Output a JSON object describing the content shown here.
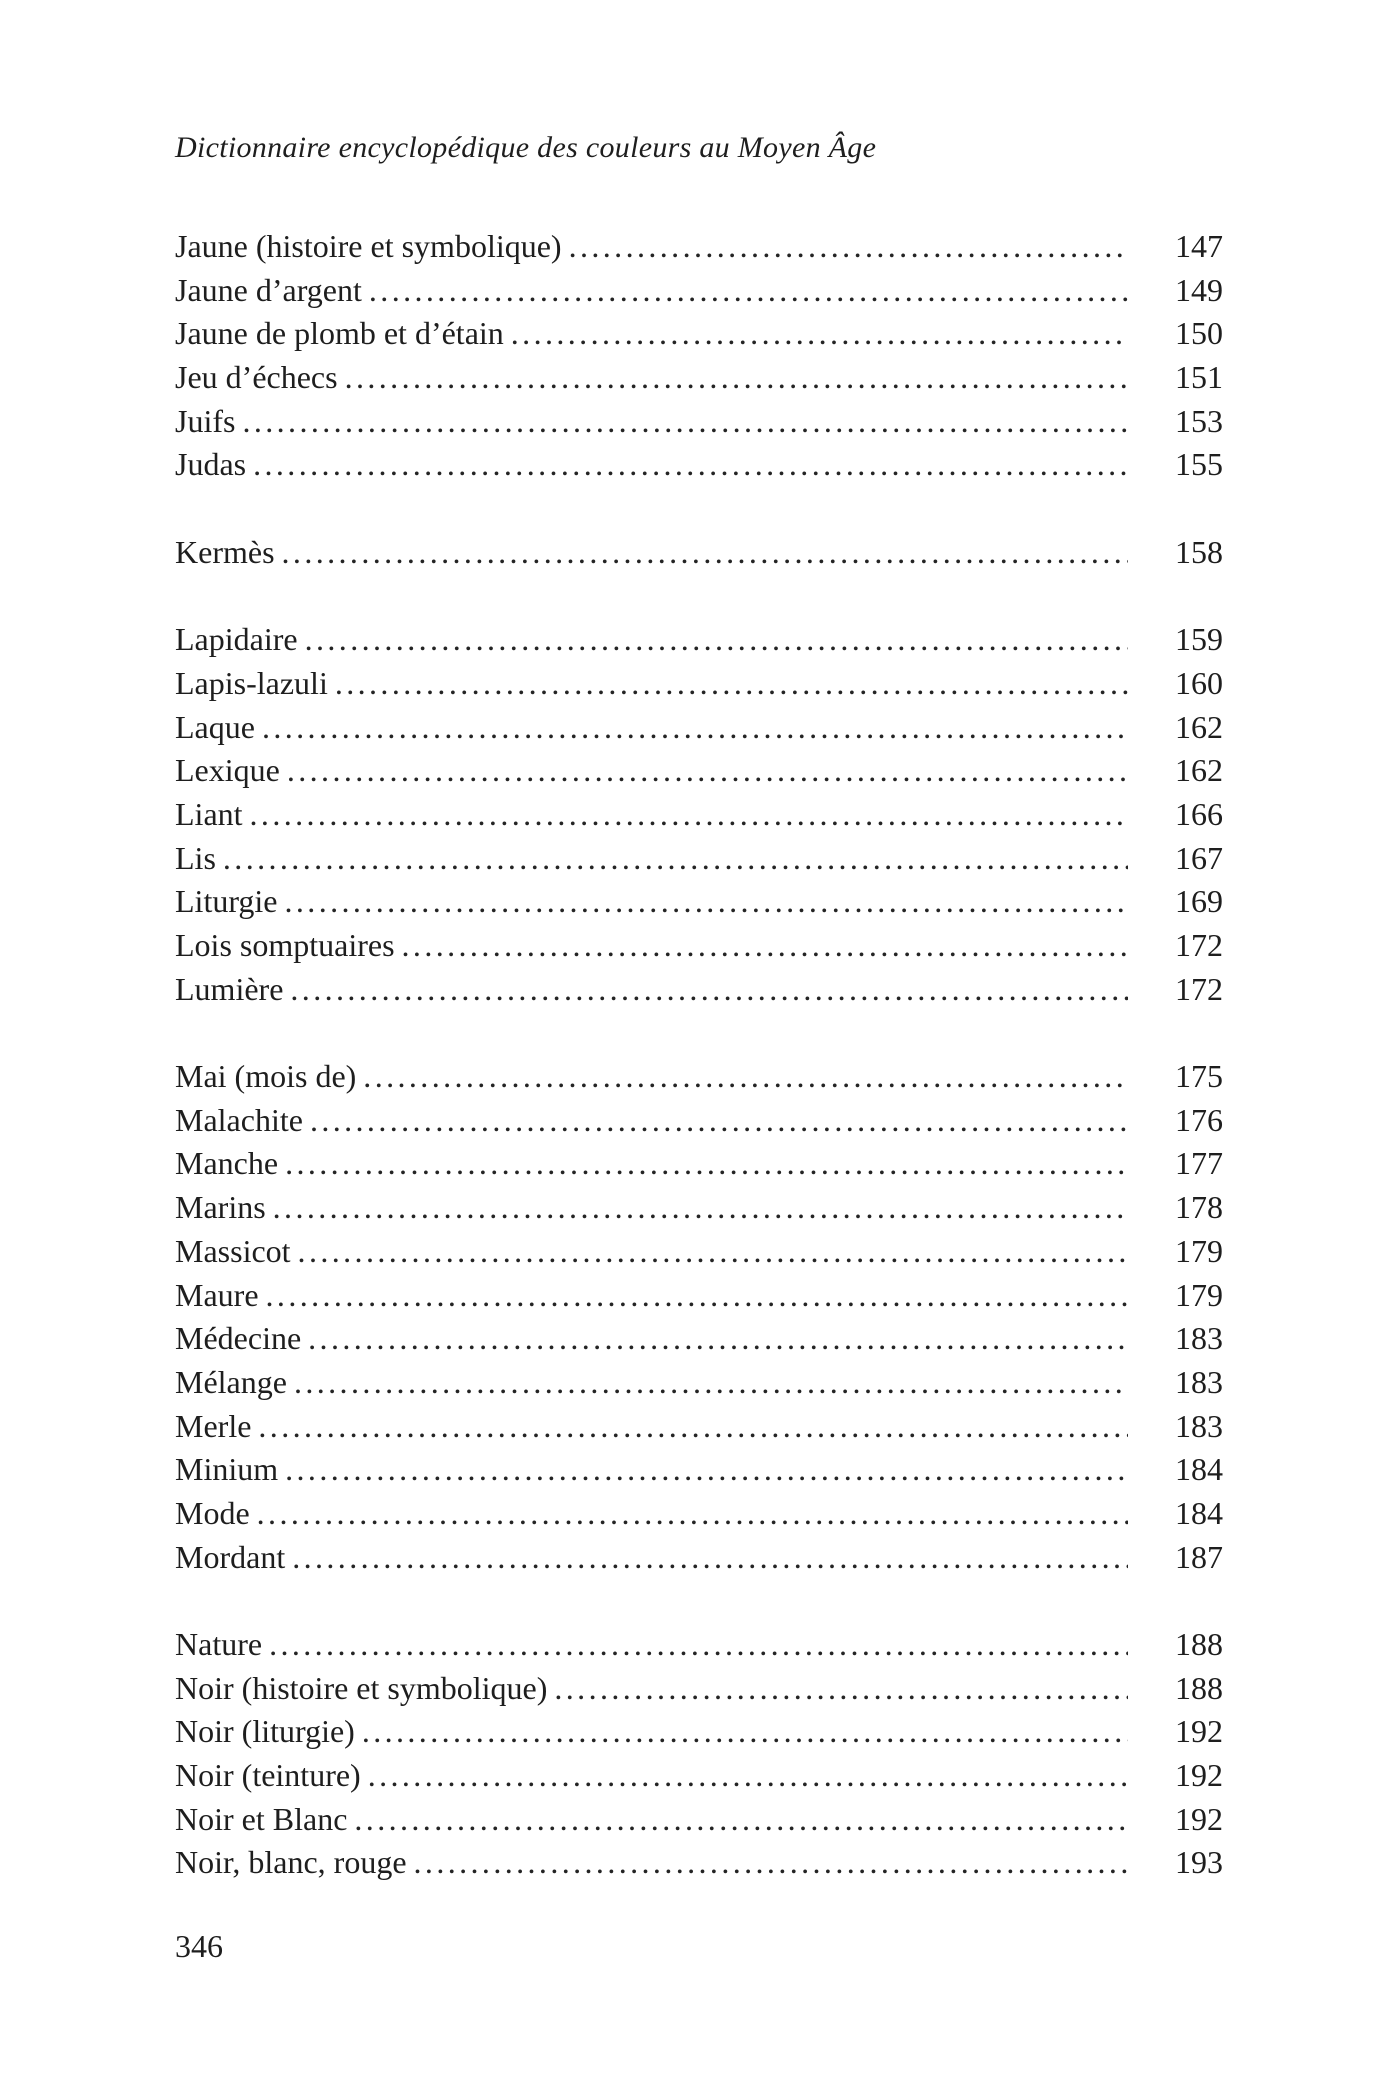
{
  "page": {
    "running_header": "Dictionnaire encyclopédique des couleurs au Moyen Âge",
    "folio": "346"
  },
  "toc": {
    "groups": [
      {
        "entries": [
          {
            "label": "Jaune (histoire et symbolique)",
            "page": "147"
          },
          {
            "label": "Jaune d’argent",
            "page": "149"
          },
          {
            "label": "Jaune de plomb et d’étain",
            "page": "150"
          },
          {
            "label": "Jeu d’échecs",
            "page": "151"
          },
          {
            "label": "Juifs",
            "page": "153"
          },
          {
            "label": "Judas",
            "page": "155"
          }
        ]
      },
      {
        "entries": [
          {
            "label": "Kermès",
            "page": "158"
          }
        ]
      },
      {
        "entries": [
          {
            "label": "Lapidaire",
            "page": "159"
          },
          {
            "label": "Lapis-lazuli",
            "page": "160"
          },
          {
            "label": "Laque",
            "page": "162"
          },
          {
            "label": "Lexique",
            "page": "162"
          },
          {
            "label": "Liant",
            "page": "166"
          },
          {
            "label": "Lis",
            "page": "167"
          },
          {
            "label": "Liturgie",
            "page": "169"
          },
          {
            "label": "Lois somptuaires",
            "page": "172"
          },
          {
            "label": "Lumière",
            "page": "172"
          }
        ]
      },
      {
        "entries": [
          {
            "label": "Mai (mois de)",
            "page": "175"
          },
          {
            "label": "Malachite",
            "page": "176"
          },
          {
            "label": "Manche",
            "page": "177"
          },
          {
            "label": "Marins",
            "page": "178"
          },
          {
            "label": "Massicot",
            "page": "179"
          },
          {
            "label": "Maure",
            "page": "179"
          },
          {
            "label": "Médecine",
            "page": "183"
          },
          {
            "label": "Mélange",
            "page": "183"
          },
          {
            "label": "Merle",
            "page": "183"
          },
          {
            "label": "Minium",
            "page": "184"
          },
          {
            "label": "Mode",
            "page": "184"
          },
          {
            "label": "Mordant",
            "page": "187"
          }
        ]
      },
      {
        "entries": [
          {
            "label": "Nature",
            "page": "188"
          },
          {
            "label": "Noir (histoire et symbolique)",
            "page": "188"
          },
          {
            "label": "Noir (liturgie)",
            "page": "192"
          },
          {
            "label": "Noir (teinture)",
            "page": "192"
          },
          {
            "label": "Noir et Blanc",
            "page": "192"
          },
          {
            "label": "Noir, blanc, rouge",
            "page": "193"
          }
        ]
      }
    ]
  }
}
